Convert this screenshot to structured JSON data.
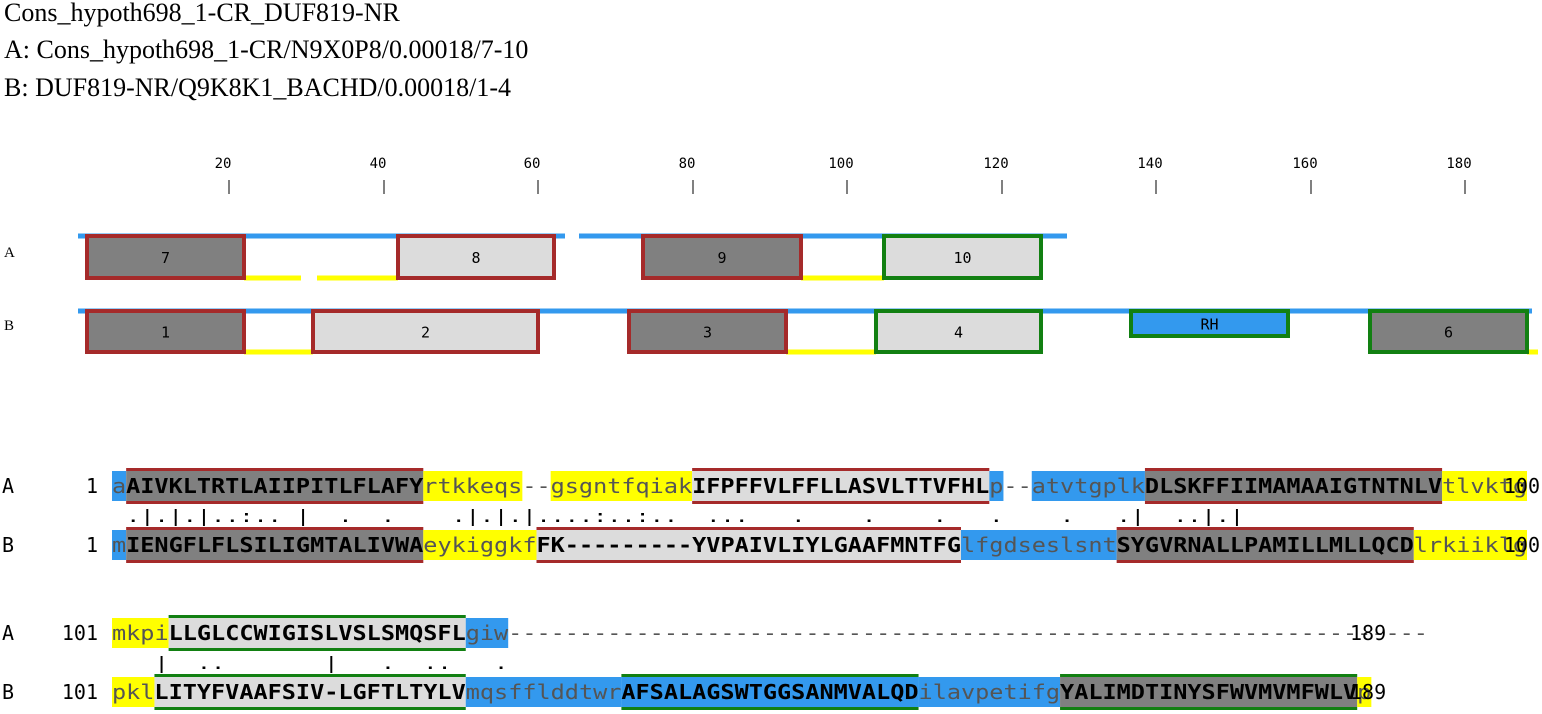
{
  "header": {
    "title": "Cons_hypoth698_1-CR_DUF819-NR",
    "line_a": "A: Cons_hypoth698_1-CR/N9X0P8/0.00018/7-10",
    "line_b": "B: DUF819-NR/Q9K8K1_BACHD/0.00018/1-4"
  },
  "ruler": {
    "ticks": [
      "20",
      "40",
      "60",
      "80",
      "100",
      "120",
      "140",
      "160",
      "180"
    ]
  },
  "tracks": {
    "a_label": "A",
    "b_label": "B",
    "a_boxes": [
      "7",
      "8",
      "9",
      "10"
    ],
    "b_boxes": [
      "1",
      "2",
      "3",
      "4",
      "RH",
      "6"
    ]
  },
  "colors": {
    "dark_box": "#808080",
    "light_box": "#dcdcdc",
    "red_border": "#a52a2a",
    "green_border": "#128012",
    "coil": "#3399ee",
    "linker": "#ffff00"
  },
  "alignment": {
    "block1": {
      "a": {
        "label": "A",
        "start": "1",
        "end": "100",
        "segments": [
          {
            "text": "a",
            "kind": "coil"
          },
          {
            "text": "AIVKLTRTLAIIPITLFLAFY",
            "kind": "dark-red"
          },
          {
            "text": "rtkkeqs",
            "kind": "linker"
          },
          {
            "text": "--",
            "kind": "gap"
          },
          {
            "text": "gsgntfqiak",
            "kind": "linker"
          },
          {
            "text": "IFPFFVLFFLLASVLTTVFHL",
            "kind": "light-red"
          },
          {
            "text": "p",
            "kind": "coil"
          },
          {
            "text": "--",
            "kind": "gap"
          },
          {
            "text": "atvtgplk",
            "kind": "coil"
          },
          {
            "text": "DLSKFFIIMAMAAIGTNTNLV",
            "kind": "dark-red"
          },
          {
            "text": "tlvktg",
            "kind": "linker"
          }
        ]
      },
      "match": " .|.|.|..:.. |  .  .    .|.|.|....:..:..  ...   .    .    .   .    .   .|  ..|.|",
      "b": {
        "label": "B",
        "start": "1",
        "end": "100",
        "segments": [
          {
            "text": "m",
            "kind": "coil"
          },
          {
            "text": "IENGFLFLSILIGMTALIVWA",
            "kind": "dark-red"
          },
          {
            "text": "eykiggkf",
            "kind": "linker"
          },
          {
            "text": "FK---------YVPAIVLIYLGAAFMNTFG",
            "kind": "light-red"
          },
          {
            "text": "lfgdseslsnt",
            "kind": "coil"
          },
          {
            "text": "SYGVRNALLPAMILLMLLQCD",
            "kind": "dark-red"
          },
          {
            "text": "lrkiiklg",
            "kind": "linker"
          }
        ]
      }
    },
    "block2": {
      "a": {
        "label": "A",
        "start": "101",
        "end": "189",
        "segments": [
          {
            "text": "mkpi",
            "kind": "linker"
          },
          {
            "text": "LLGLCCWIGISLVSLSMQSFL",
            "kind": "light-green"
          },
          {
            "text": "giw",
            "kind": "coil"
          },
          {
            "text": "-----------------------------------------------------------------",
            "kind": "gap"
          }
        ]
      },
      "match": "   |  ..       |   .  ..   .",
      "b": {
        "label": "B",
        "start": "101",
        "end": "189",
        "segments": [
          {
            "text": "pkl",
            "kind": "linker"
          },
          {
            "text": "LITYFVAAFSIV-LGFTLTYLV",
            "kind": "light-green"
          },
          {
            "text": "mqsfflddtwr",
            "kind": "coil"
          },
          {
            "text": "AFSALAGSWTGGSANMVALQD",
            "kind": "blue-green"
          },
          {
            "text": "ilavpetifg",
            "kind": "coil"
          },
          {
            "text": "YALIMDTINYSFWVMVMFWLV",
            "kind": "dark-green"
          },
          {
            "text": "p",
            "kind": "linker"
          }
        ]
      }
    }
  }
}
